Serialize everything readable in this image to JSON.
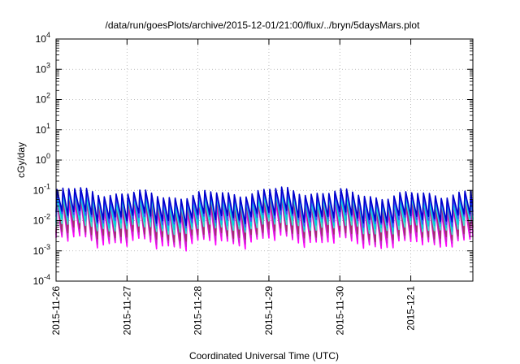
{
  "chart_data": {
    "type": "line",
    "title": "/data/run/goesPlots/archive/2015-12-01/21:00/flux/../bryn/5daysMars.plot",
    "xlabel": "Coordinated Universal Time (UTC)",
    "ylabel": "cGy/day",
    "y_scale": "log",
    "ylim": [
      0.0001,
      10000
    ],
    "y_ticks": [
      {
        "value": 0.0001,
        "base": "10",
        "exp": "-4"
      },
      {
        "value": 0.001,
        "base": "10",
        "exp": "-3"
      },
      {
        "value": 0.01,
        "base": "10",
        "exp": "-2"
      },
      {
        "value": 0.1,
        "base": "10",
        "exp": "-1"
      },
      {
        "value": 1,
        "base": "10",
        "exp": "0"
      },
      {
        "value": 10,
        "base": "10",
        "exp": "1"
      },
      {
        "value": 100,
        "base": "10",
        "exp": "2"
      },
      {
        "value": 1000,
        "base": "10",
        "exp": "3"
      },
      {
        "value": 10000,
        "base": "10",
        "exp": "4"
      }
    ],
    "xlim": [
      "2015-11-26T00:00",
      "2015-12-01T21:00"
    ],
    "x_ticks": [
      "2015-11-26",
      "2015-11-27",
      "2015-11-28",
      "2015-11-29",
      "2015-11-30",
      "2015-12-1"
    ],
    "grid": true,
    "cycle_hours": 2,
    "series": [
      {
        "color": "#ff00ff",
        "peak": 0.03,
        "trough": 0.002
      },
      {
        "color": "#cc22cc",
        "peak": 0.034,
        "trough": 0.0026
      },
      {
        "color": "#a03070",
        "peak": 0.045,
        "trough": 0.0035
      },
      {
        "color": "#40e0d0",
        "peak": 0.052,
        "trough": 0.006
      },
      {
        "color": "#00d0e0",
        "peak": 0.058,
        "trough": 0.008
      },
      {
        "color": "#4444ff",
        "peak": 0.07,
        "trough": 0.011
      },
      {
        "color": "#0000cc",
        "peak": 0.08,
        "trough": 0.014
      }
    ]
  }
}
